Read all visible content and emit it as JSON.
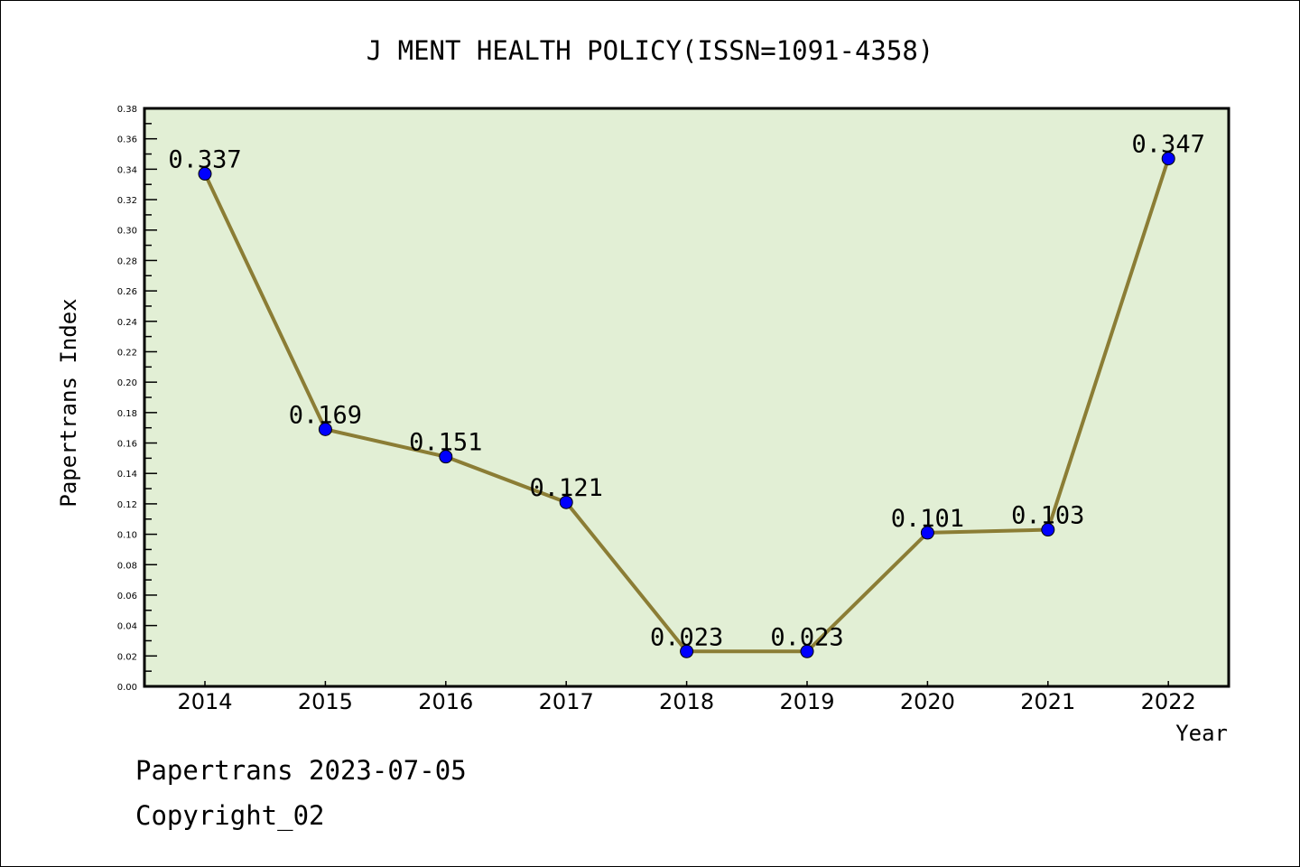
{
  "chart_data": {
    "type": "line",
    "title": "J MENT HEALTH POLICY(ISSN=1091-4358)",
    "xlabel": "Year",
    "ylabel": "Papertrans Index",
    "categories": [
      "2014",
      "2015",
      "2016",
      "2017",
      "2018",
      "2019",
      "2020",
      "2021",
      "2022"
    ],
    "values": [
      0.337,
      0.169,
      0.151,
      0.121,
      0.023,
      0.023,
      0.101,
      0.103,
      0.347
    ],
    "data_labels": [
      "0.337",
      "0.169",
      "0.151",
      "0.121",
      "0.023",
      "0.023",
      "0.101",
      "0.103",
      "0.347"
    ],
    "ylim": [
      0,
      0.38
    ],
    "yticks": [
      "0.00",
      "0.02",
      "0.04",
      "0.06",
      "0.08",
      "0.10",
      "0.12",
      "0.14",
      "0.16",
      "0.18",
      "0.20",
      "0.22",
      "0.24",
      "0.26",
      "0.28",
      "0.30",
      "0.32",
      "0.34",
      "0.36",
      "0.38"
    ],
    "grid": false,
    "colors": {
      "line": "#8b7d35",
      "marker": "#0000ff",
      "plot_bg": "#e2efd5"
    }
  },
  "footer": {
    "line1": "Papertrans 2023-07-05",
    "line2": "Copyright_02"
  }
}
